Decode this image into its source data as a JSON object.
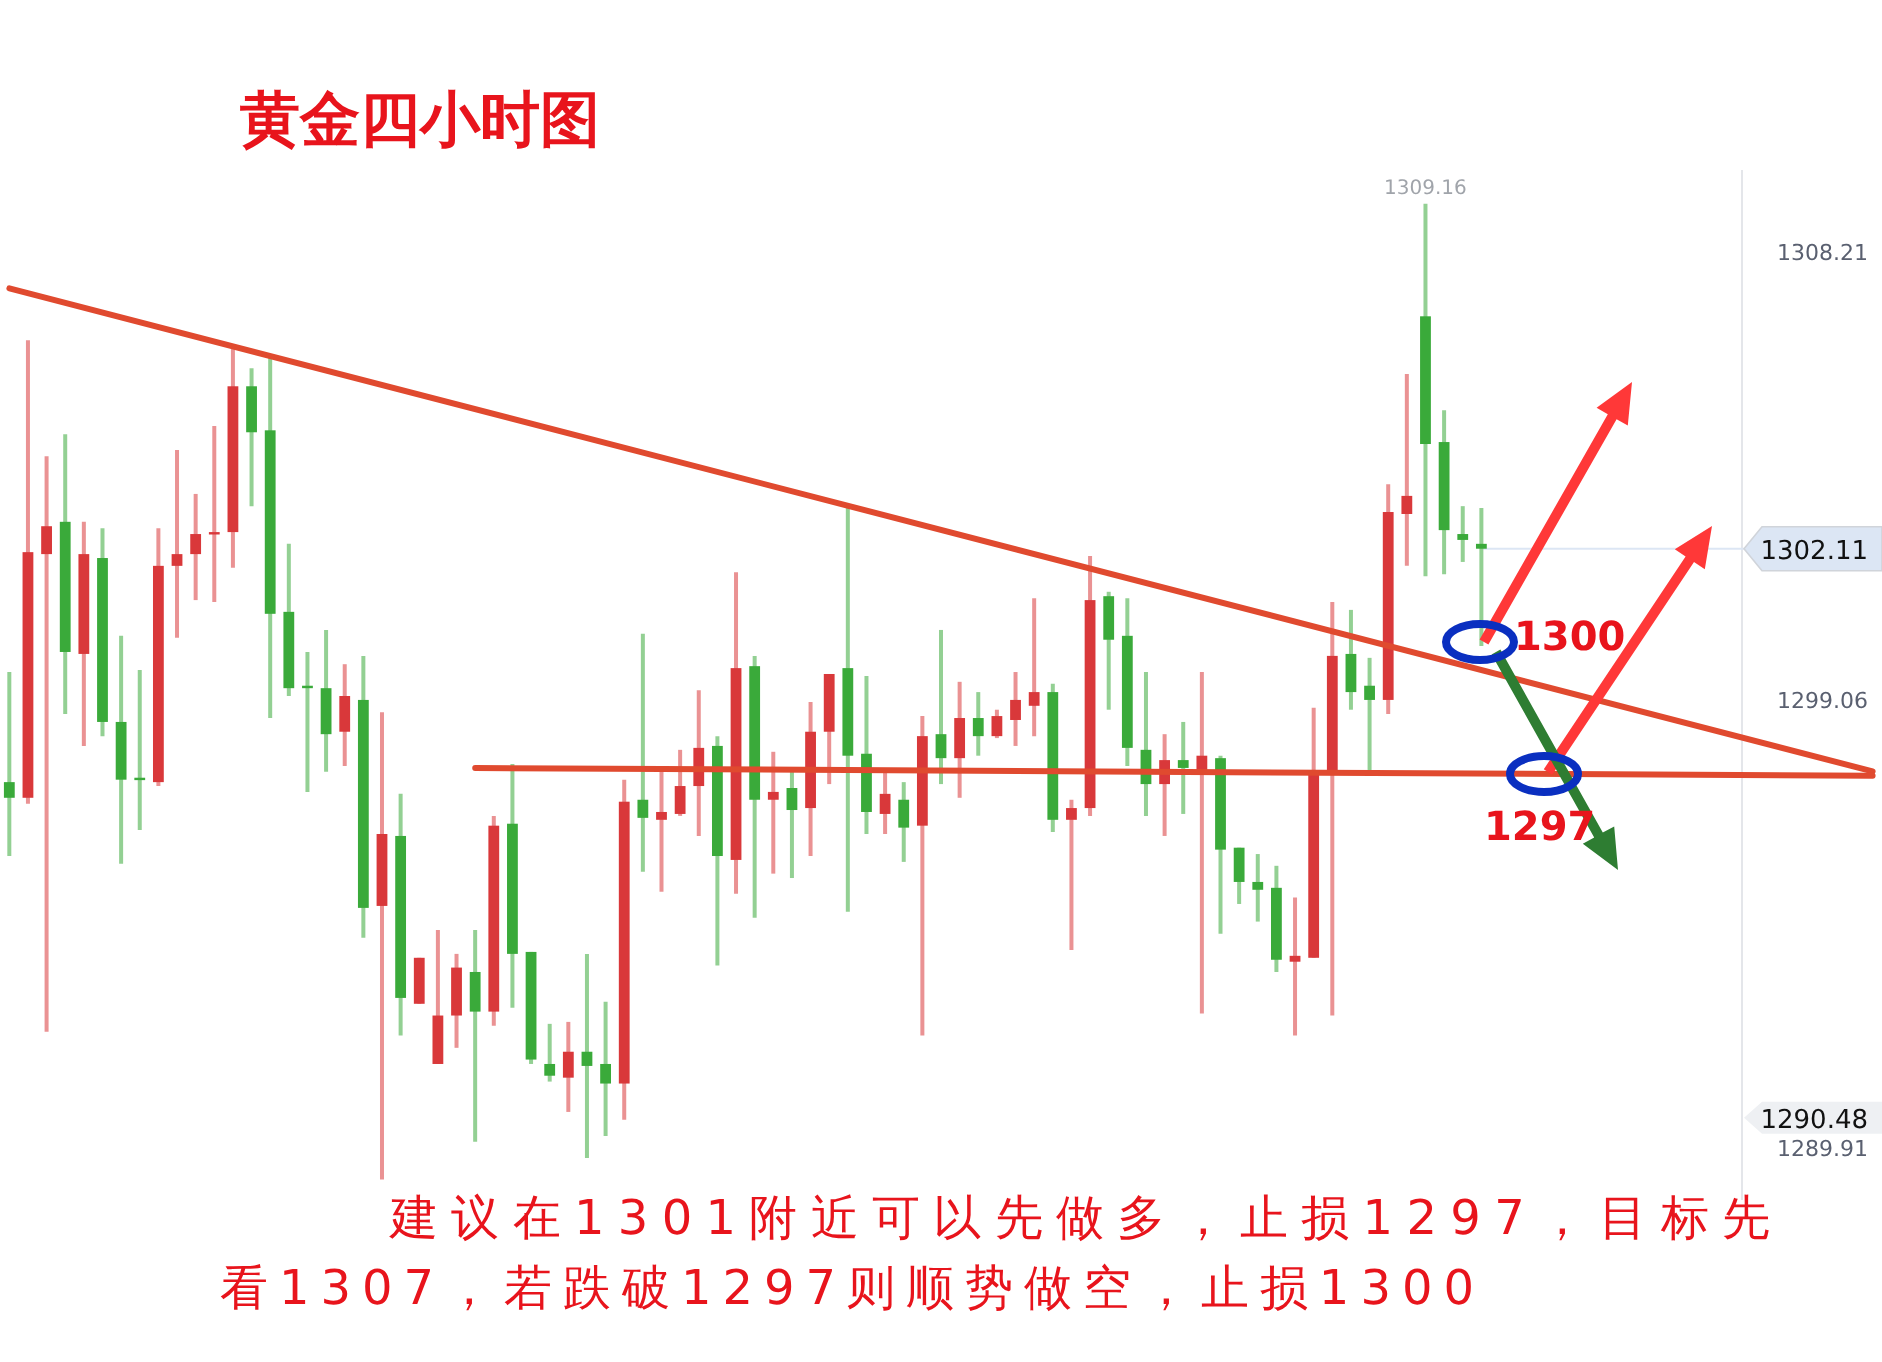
{
  "chart_data": {
    "type": "candlestick",
    "title": "黄金四小时图",
    "categories": [
      null,
      null,
      null,
      null,
      null,
      null,
      null,
      null,
      null,
      null,
      null,
      null,
      null,
      null,
      null,
      null,
      null,
      null,
      null,
      null,
      null,
      null,
      null,
      null,
      null,
      null,
      null,
      null,
      null,
      null,
      null,
      null,
      null,
      null,
      null,
      null,
      null,
      null,
      null,
      null,
      null,
      null,
      null,
      null,
      null,
      null,
      null,
      null,
      null,
      null,
      null,
      null,
      null,
      null,
      null,
      null,
      null,
      null,
      null,
      null,
      null,
      null,
      null,
      null,
      null,
      null,
      null,
      null,
      null,
      null,
      null,
      null,
      null,
      null,
      null,
      null,
      null,
      null,
      null,
      null,
      null,
      null,
      null,
      null,
      null,
      null,
      null,
      null,
      null,
      null,
      null,
      null,
      null,
      null,
      null,
      null,
      null,
      null,
      null,
      null,
      null
    ],
    "tick_labels": "y",
    "ohlc": [
      [
        1297.34,
        1299.59,
        1295.83,
        1297.02
      ],
      [
        1297.02,
        1306.37,
        1296.9,
        1302.04
      ],
      [
        1302.0,
        1304.0,
        1292.24,
        1302.57
      ],
      [
        1302.66,
        1304.45,
        1298.73,
        1300.0
      ],
      [
        1299.96,
        1302.66,
        1298.08,
        1302.0
      ],
      [
        1301.92,
        1302.53,
        1298.28,
        1298.57
      ],
      [
        1298.57,
        1300.33,
        1295.67,
        1297.39
      ],
      [
        1297.43,
        1299.63,
        1296.36,
        1297.39
      ],
      [
        1297.34,
        1302.53,
        1297.26,
        1301.76
      ],
      [
        1301.76,
        1304.13,
        1300.29,
        1302.0
      ],
      [
        1302.0,
        1303.23,
        1301.06,
        1302.41
      ],
      [
        1302.41,
        1304.62,
        1301.02,
        1302.45
      ],
      [
        1302.45,
        1306.29,
        1301.72,
        1305.43
      ],
      [
        1305.43,
        1305.8,
        1302.98,
        1304.49
      ],
      [
        1304.53,
        1306.09,
        1298.65,
        1300.78
      ],
      [
        1300.82,
        1302.21,
        1299.1,
        1299.26
      ],
      [
        1299.31,
        1300.0,
        1297.14,
        1299.26
      ],
      [
        1299.26,
        1300.45,
        1297.55,
        1298.32
      ],
      [
        1298.37,
        1299.75,
        1297.67,
        1299.1
      ],
      [
        1299.02,
        1299.92,
        1294.16,
        1294.77
      ],
      [
        1294.81,
        1298.77,
        1289.22,
        1296.28
      ],
      [
        1296.24,
        1297.1,
        1292.16,
        1292.93
      ],
      [
        1292.81,
        1293.75,
        1292.81,
        1293.75
      ],
      [
        1291.58,
        1294.32,
        1291.58,
        1292.57
      ],
      [
        1292.57,
        1293.83,
        1291.91,
        1293.55
      ],
      [
        1293.46,
        1294.32,
        1289.99,
        1292.65
      ],
      [
        1292.65,
        1296.65,
        1292.36,
        1296.45
      ],
      [
        1296.49,
        1297.71,
        1292.73,
        1293.83
      ],
      [
        1293.87,
        1293.87,
        1291.58,
        1291.67
      ],
      [
        1291.58,
        1292.4,
        1291.22,
        1291.34
      ],
      [
        1291.3,
        1292.44,
        1290.6,
        1291.83
      ],
      [
        1291.83,
        1293.83,
        1289.66,
        1291.54
      ],
      [
        1291.58,
        1292.85,
        1290.11,
        1291.18
      ],
      [
        1291.18,
        1297.39,
        1290.44,
        1296.94
      ],
      [
        1296.98,
        1300.37,
        1295.51,
        1296.61
      ],
      [
        1296.57,
        1297.55,
        1295.1,
        1296.73
      ],
      [
        1296.69,
        1298.0,
        1296.65,
        1297.26
      ],
      [
        1297.26,
        1299.22,
        1296.24,
        1298.04
      ],
      [
        1298.08,
        1298.28,
        1293.59,
        1295.83
      ],
      [
        1295.75,
        1301.63,
        1295.06,
        1299.67
      ],
      [
        1299.71,
        1299.92,
        1294.57,
        1296.98
      ],
      [
        1296.98,
        1297.96,
        1295.47,
        1297.14
      ],
      [
        1297.22,
        1297.55,
        1295.38,
        1296.77
      ],
      [
        1296.81,
        1298.98,
        1295.83,
        1298.37
      ],
      [
        1298.37,
        1299.55,
        1297.3,
        1299.55
      ],
      [
        1299.67,
        1302.94,
        1294.69,
        1297.88
      ],
      [
        1297.92,
        1299.51,
        1296.28,
        1296.73
      ],
      [
        1296.69,
        1297.55,
        1296.28,
        1297.1
      ],
      [
        1296.98,
        1297.34,
        1295.71,
        1296.41
      ],
      [
        1296.45,
        1298.69,
        1292.16,
        1298.28
      ],
      [
        1298.32,
        1300.45,
        1297.3,
        1297.83
      ],
      [
        1297.83,
        1299.39,
        1297.02,
        1298.65
      ],
      [
        1298.65,
        1299.18,
        1297.88,
        1298.28
      ],
      [
        1298.28,
        1298.82,
        1298.24,
        1298.69
      ],
      [
        1298.61,
        1299.59,
        1298.08,
        1299.02
      ],
      [
        1298.9,
        1301.1,
        1298.28,
        1299.18
      ],
      [
        1299.18,
        1299.35,
        1296.32,
        1296.57
      ],
      [
        1296.57,
        1296.98,
        1293.91,
        1296.81
      ],
      [
        1296.81,
        1301.96,
        1296.65,
        1301.06
      ],
      [
        1301.14,
        1301.23,
        1298.82,
        1300.25
      ],
      [
        1300.33,
        1301.1,
        1297.67,
        1298.04
      ],
      [
        1298.0,
        1299.59,
        1296.65,
        1297.3
      ],
      [
        1297.3,
        1298.32,
        1296.24,
        1297.79
      ],
      [
        1297.79,
        1298.57,
        1296.69,
        1297.63
      ],
      [
        1297.59,
        1299.59,
        1292.61,
        1297.88
      ],
      [
        1297.83,
        1297.88,
        1294.24,
        1295.96
      ],
      [
        1296.0,
        1296.0,
        1294.85,
        1295.3
      ],
      [
        1295.3,
        1295.87,
        1294.49,
        1295.14
      ],
      [
        1295.18,
        1295.63,
        1293.46,
        1293.71
      ],
      [
        1293.67,
        1294.98,
        1292.16,
        1293.79
      ],
      [
        1293.75,
        1298.86,
        1293.75,
        1297.55
      ],
      [
        1297.55,
        1301.02,
        1292.57,
        1299.92
      ],
      [
        1299.96,
        1300.86,
        1298.82,
        1299.18
      ],
      [
        1299.31,
        1299.88,
        1297.55,
        1299.02
      ],
      [
        1299.02,
        1303.43,
        1298.73,
        1302.86
      ],
      [
        1302.82,
        1305.68,
        1301.76,
        1303.19
      ],
      [
        1306.86,
        1309.16,
        1301.55,
        1304.25
      ],
      [
        1304.29,
        1304.94,
        1301.59,
        1302.49
      ],
      [
        1302.41,
        1302.98,
        1301.84,
        1302.29
      ],
      [
        1302.21,
        1302.94,
        1300.12,
        1302.11
      ],
      null,
      null,
      null,
      null,
      null,
      null,
      null,
      null,
      null,
      null,
      null,
      null,
      null,
      null,
      null,
      null,
      null,
      null,
      null,
      null,
      null
    ],
    "colors": [
      "#3aaa3a",
      "#d9383a",
      "#d9383a",
      "#3aaa3a",
      "#d9383a",
      "#3aaa3a",
      "#3aaa3a",
      "#3aaa3a",
      "#d9383a",
      "#d9383a",
      "#d9383a",
      "#d9383a",
      "#d9383a",
      "#3aaa3a",
      "#3aaa3a",
      "#3aaa3a",
      "#3aaa3a",
      "#3aaa3a",
      "#d9383a",
      "#3aaa3a",
      "#d9383a",
      "#3aaa3a",
      "#d9383a",
      "#d9383a",
      "#d9383a",
      "#3aaa3a",
      "#d9383a",
      "#3aaa3a",
      "#3aaa3a",
      "#3aaa3a",
      "#d9383a",
      "#3aaa3a",
      "#3aaa3a",
      "#d9383a",
      "#3aaa3a",
      "#d9383a",
      "#d9383a",
      "#d9383a",
      "#3aaa3a",
      "#d9383a",
      "#3aaa3a",
      "#d9383a",
      "#3aaa3a",
      "#d9383a",
      "#d9383a",
      "#3aaa3a",
      "#3aaa3a",
      "#d9383a",
      "#3aaa3a",
      "#d9383a",
      "#3aaa3a",
      "#d9383a",
      "#3aaa3a",
      "#d9383a",
      "#d9383a",
      "#d9383a",
      "#3aaa3a",
      "#d9383a",
      "#d9383a",
      "#3aaa3a",
      "#3aaa3a",
      "#3aaa3a",
      "#d9383a",
      "#3aaa3a",
      "#d9383a",
      "#3aaa3a",
      "#3aaa3a",
      "#3aaa3a",
      "#3aaa3a",
      "#d9383a",
      "#d9383a",
      "#d9383a",
      "#3aaa3a",
      "#3aaa3a",
      "#d9383a",
      "#d9383a",
      "#3aaa3a",
      "#3aaa3a",
      "#3aaa3a",
      "#3aaa3a",
      null,
      null,
      null,
      null,
      null,
      null,
      null,
      null,
      null,
      null,
      null,
      null,
      null,
      null,
      null,
      null,
      null,
      null,
      null,
      null,
      null
    ],
    "series": [
      {
        "type": "line",
        "values": [
          1307.43,
          null,
          null,
          null,
          null,
          null,
          null,
          null,
          null,
          null,
          null,
          null,
          null,
          null,
          null,
          null,
          null,
          null,
          null,
          null,
          null,
          null,
          null,
          null,
          null,
          null,
          null,
          null,
          null,
          null,
          null,
          null,
          null,
          null,
          null,
          null,
          null,
          null,
          null,
          null,
          null,
          null,
          null,
          null,
          null,
          null,
          null,
          null,
          null,
          null,
          null,
          null,
          null,
          null,
          null,
          null,
          null,
          null,
          null,
          null,
          null,
          null,
          null,
          null,
          null,
          null,
          null,
          null,
          null,
          null,
          null,
          null,
          null,
          null,
          null,
          null,
          null,
          null,
          null,
          null,
          null,
          null,
          null,
          null,
          null,
          null,
          null,
          null,
          null,
          null,
          null,
          null,
          null,
          null,
          null,
          null,
          null,
          null,
          null,
          null,
          1297.56
        ],
        "color": "#e04a2f"
      },
      {
        "type": "line",
        "values": [
          null,
          null,
          null,
          null,
          null,
          null,
          null,
          null,
          null,
          null,
          null,
          null,
          null,
          null,
          null,
          null,
          null,
          null,
          null,
          null,
          null,
          null,
          null,
          null,
          null,
          1297.63,
          null,
          null,
          null,
          null,
          null,
          null,
          null,
          null,
          null,
          null,
          null,
          null,
          null,
          null,
          null,
          null,
          null,
          null,
          null,
          null,
          null,
          null,
          null,
          null,
          null,
          null,
          null,
          null,
          null,
          null,
          null,
          null,
          null,
          null,
          null,
          null,
          null,
          null,
          null,
          null,
          null,
          null,
          null,
          null,
          null,
          null,
          null,
          null,
          null,
          null,
          null,
          null,
          null,
          null,
          null,
          null,
          null,
          null,
          null,
          null,
          null,
          null,
          null,
          null,
          null,
          null,
          null,
          null,
          null,
          null,
          null,
          null,
          null,
          null,
          1297.47
        ],
        "color": "#e04a2f"
      }
    ],
    "ylim": [
      1288.8,
      1309.85
    ],
    "yticks": [
      1308.21,
      1299.06,
      {
        "value": 1290.48,
        "label": "1290.48"
      },
      1289.91
    ],
    "ref_lines": [
      {
        "axis": "y",
        "value": 1302.11,
        "label": "1302.11",
        "color": "#dce6f4",
        "line_style": "solid"
      }
    ],
    "annotations": [
      "1309.16",
      "1300",
      "1297",
      "建议在1301附近可以先做多，止损1297，目标先",
      "看1307，若跌破1297则顺势做空，止损1300"
    ]
  }
}
